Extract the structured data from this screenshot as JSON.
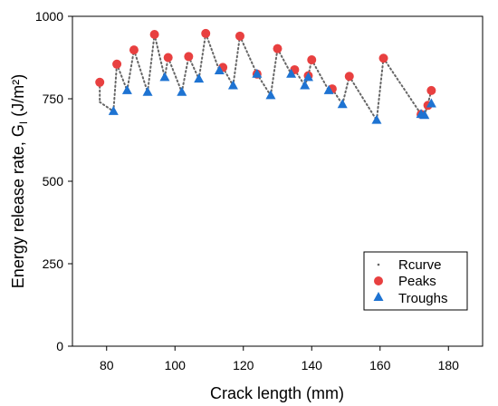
{
  "chart_data": {
    "type": "scatter",
    "title": "",
    "xlabel": "Crack length (mm)",
    "ylabel": "Energy release rate, G",
    "ylabel_subscript": "I",
    "ylabel_unit": " (J/m²)",
    "xlim": [
      70,
      190
    ],
    "ylim": [
      0,
      1000
    ],
    "x_ticks": [
      80,
      100,
      120,
      140,
      160,
      180
    ],
    "y_ticks": [
      0,
      250,
      500,
      750,
      1000
    ],
    "grid": false,
    "legend_position": "bottom-right",
    "series": [
      {
        "name": "Rcurve",
        "style": "dotted-line",
        "color": "#666666",
        "points": [
          [
            78,
            800
          ],
          [
            78,
            740
          ],
          [
            82,
            712
          ],
          [
            83,
            855
          ],
          [
            86,
            775
          ],
          [
            88,
            898
          ],
          [
            92,
            770
          ],
          [
            94,
            945
          ],
          [
            97,
            815
          ],
          [
            98,
            875
          ],
          [
            102,
            770
          ],
          [
            104,
            878
          ],
          [
            107,
            810
          ],
          [
            109,
            948
          ],
          [
            113,
            835
          ],
          [
            114,
            845
          ],
          [
            117,
            790
          ],
          [
            119,
            940
          ],
          [
            124,
            825
          ],
          [
            128,
            760
          ],
          [
            130,
            902
          ],
          [
            134,
            825
          ],
          [
            135,
            838
          ],
          [
            138,
            790
          ],
          [
            139,
            820
          ],
          [
            140,
            868
          ],
          [
            145,
            775
          ],
          [
            146,
            780
          ],
          [
            149,
            733
          ],
          [
            151,
            818
          ],
          [
            159,
            685
          ],
          [
            161,
            873
          ],
          [
            172,
            703
          ],
          [
            173,
            700
          ],
          [
            174,
            735
          ],
          [
            175,
            775
          ]
        ]
      },
      {
        "name": "Peaks",
        "style": "marker-circle",
        "color": "#E84040",
        "points": [
          [
            78,
            800
          ],
          [
            83,
            855
          ],
          [
            88,
            898
          ],
          [
            94,
            945
          ],
          [
            98,
            875
          ],
          [
            104,
            878
          ],
          [
            109,
            948
          ],
          [
            114,
            845
          ],
          [
            119,
            940
          ],
          [
            124,
            825
          ],
          [
            130,
            902
          ],
          [
            135,
            838
          ],
          [
            139,
            820
          ],
          [
            140,
            868
          ],
          [
            146,
            780
          ],
          [
            151,
            818
          ],
          [
            161,
            873
          ],
          [
            172,
            703
          ],
          [
            174,
            730
          ],
          [
            175,
            775
          ]
        ]
      },
      {
        "name": "Troughs",
        "style": "marker-triangle",
        "color": "#1E73D2",
        "points": [
          [
            82,
            712
          ],
          [
            86,
            775
          ],
          [
            92,
            770
          ],
          [
            97,
            815
          ],
          [
            102,
            770
          ],
          [
            107,
            810
          ],
          [
            113,
            835
          ],
          [
            117,
            790
          ],
          [
            124,
            825
          ],
          [
            128,
            760
          ],
          [
            134,
            825
          ],
          [
            138,
            790
          ],
          [
            139,
            815
          ],
          [
            145,
            775
          ],
          [
            149,
            733
          ],
          [
            159,
            685
          ],
          [
            172,
            703
          ],
          [
            173,
            700
          ],
          [
            175,
            735
          ]
        ]
      }
    ],
    "colors": {
      "axis": "#000000",
      "plot_border": "#000000"
    }
  }
}
